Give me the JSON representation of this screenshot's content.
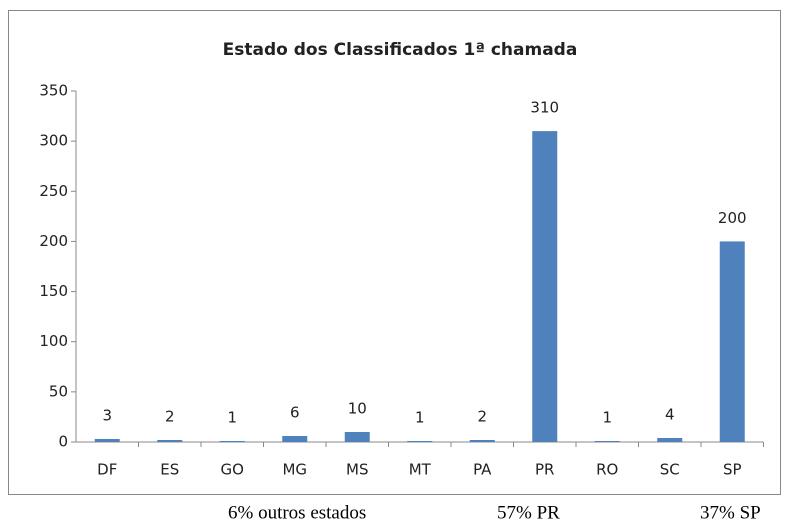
{
  "chart_data": {
    "type": "bar",
    "title": "Estado dos Classificados 1ª chamada",
    "categories": [
      "DF",
      "ES",
      "GO",
      "MG",
      "MS",
      "MT",
      "PA",
      "PR",
      "RO",
      "SC",
      "SP"
    ],
    "values": [
      3,
      2,
      1,
      6,
      10,
      1,
      2,
      310,
      1,
      4,
      200
    ],
    "color": "#4f81bd",
    "ylim": [
      0,
      350
    ],
    "yticks": [
      0,
      50,
      100,
      150,
      200,
      250,
      300,
      350
    ],
    "grid": false,
    "data_labels": true,
    "annotations": [
      "6% outros estados",
      "57% PR",
      "37% SP"
    ]
  }
}
